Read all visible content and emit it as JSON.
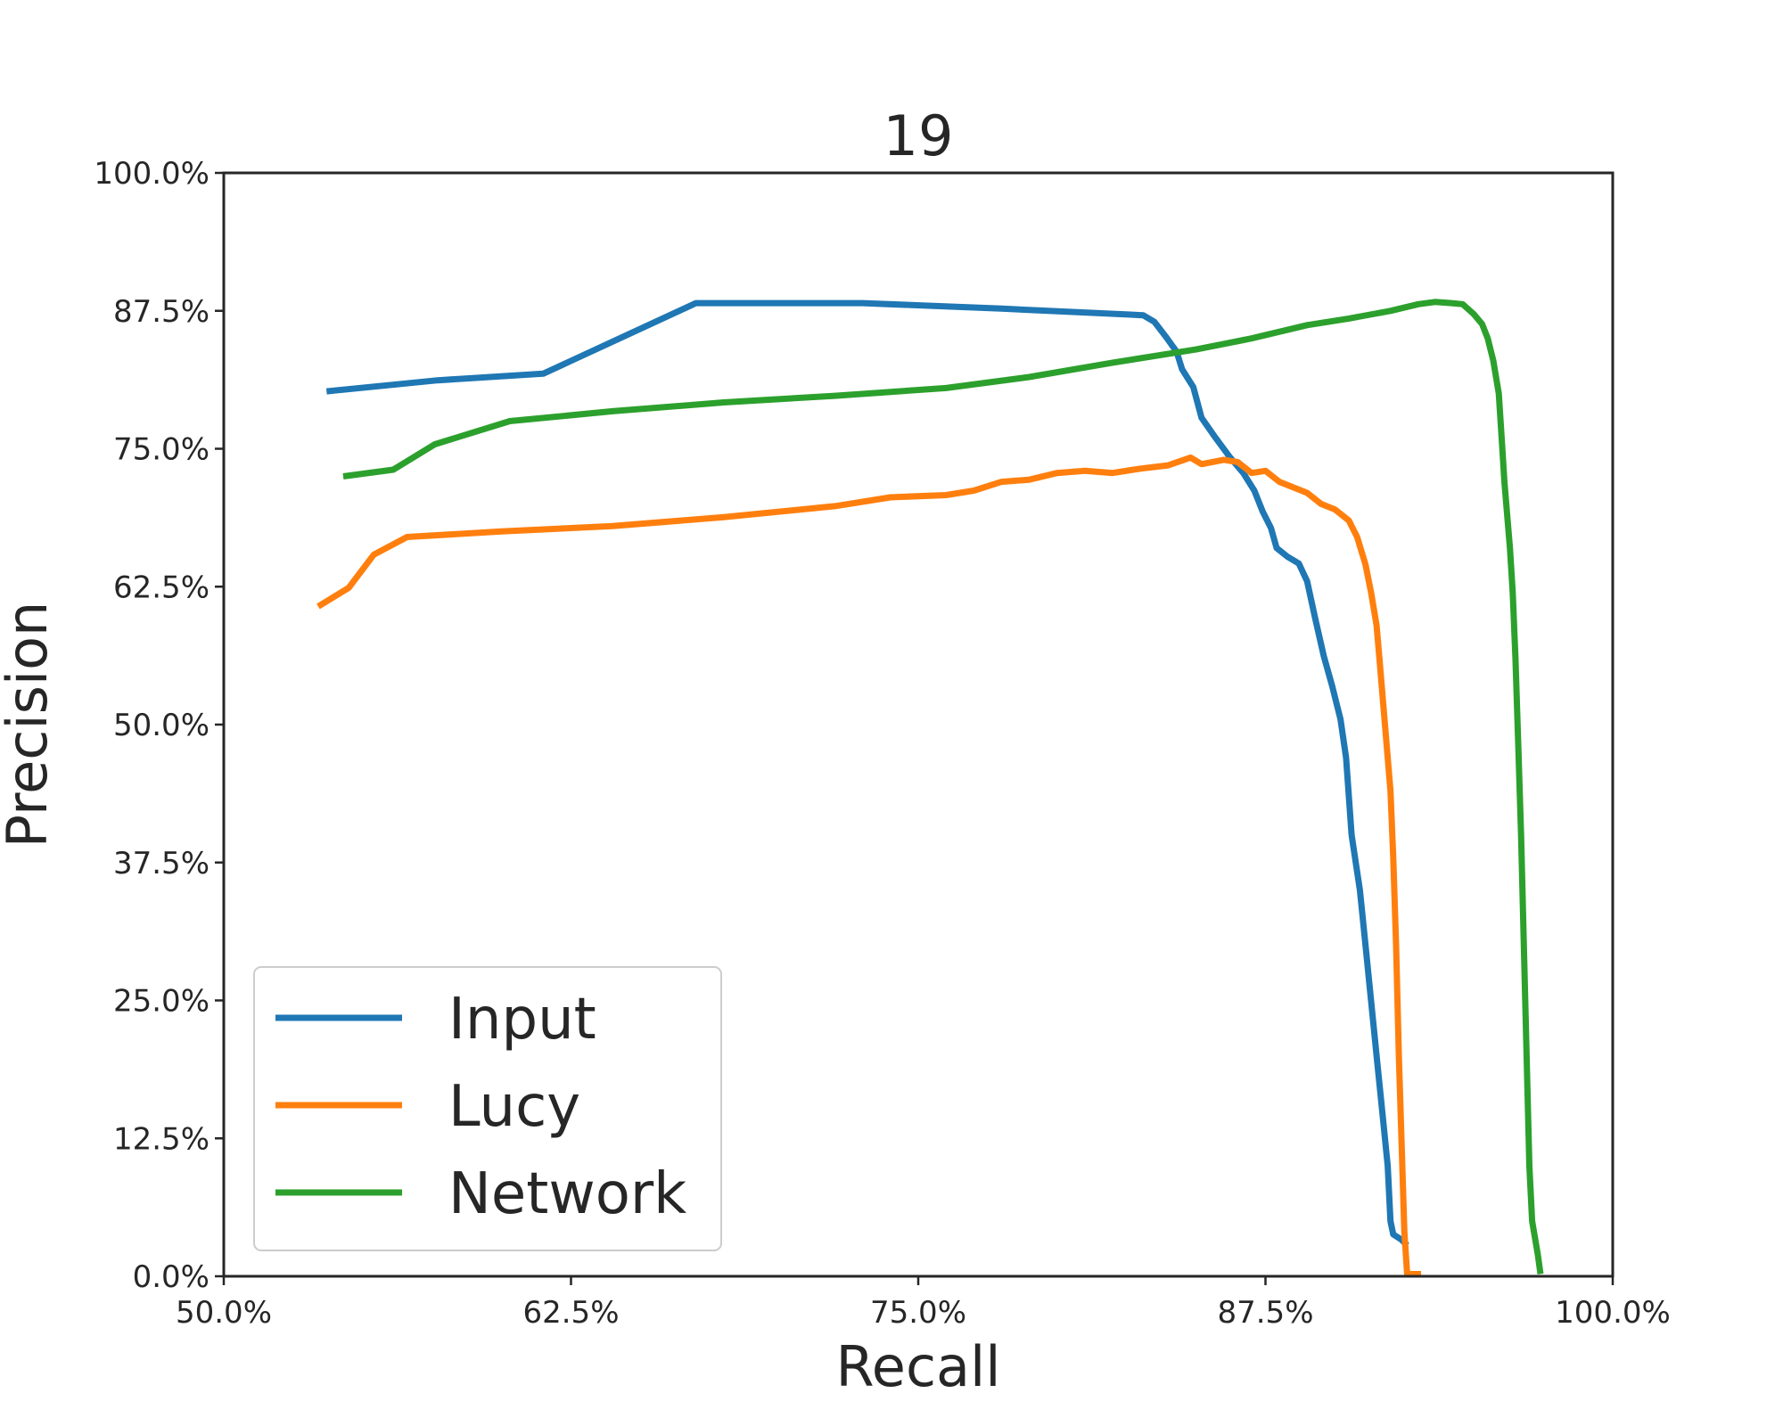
{
  "chart_data": {
    "type": "line",
    "title": "19",
    "xlabel": "Recall",
    "ylabel": "Precision",
    "xlim": [
      0.5,
      1.0
    ],
    "ylim": [
      0.0,
      1.0
    ],
    "x_ticks": [
      0.5,
      0.625,
      0.75,
      0.875,
      1.0
    ],
    "y_ticks": [
      0.0,
      0.125,
      0.25,
      0.375,
      0.5,
      0.625,
      0.75,
      0.875,
      1.0
    ],
    "x_tick_labels": [
      "50.0%",
      "62.5%",
      "75.0%",
      "87.5%",
      "100.0%"
    ],
    "y_tick_labels": [
      "0.0%",
      "12.5%",
      "25.0%",
      "37.5%",
      "50.0%",
      "62.5%",
      "75.0%",
      "87.5%",
      "100.0%"
    ],
    "grid": false,
    "legend_position": "lower-left",
    "series": [
      {
        "name": "Input",
        "color": "#1f77b4",
        "points": [
          [
            0.537,
            0.802
          ],
          [
            0.577,
            0.812
          ],
          [
            0.615,
            0.818
          ],
          [
            0.67,
            0.882
          ],
          [
            0.73,
            0.882
          ],
          [
            0.78,
            0.877
          ],
          [
            0.831,
            0.871
          ],
          [
            0.835,
            0.865
          ],
          [
            0.839,
            0.852
          ],
          [
            0.843,
            0.838
          ],
          [
            0.845,
            0.822
          ],
          [
            0.849,
            0.806
          ],
          [
            0.852,
            0.778
          ],
          [
            0.857,
            0.76
          ],
          [
            0.862,
            0.743
          ],
          [
            0.867,
            0.728
          ],
          [
            0.871,
            0.712
          ],
          [
            0.874,
            0.693
          ],
          [
            0.877,
            0.678
          ],
          [
            0.879,
            0.66
          ],
          [
            0.883,
            0.652
          ],
          [
            0.887,
            0.646
          ],
          [
            0.89,
            0.63
          ],
          [
            0.893,
            0.595
          ],
          [
            0.896,
            0.562
          ],
          [
            0.899,
            0.535
          ],
          [
            0.902,
            0.505
          ],
          [
            0.904,
            0.47
          ],
          [
            0.906,
            0.4
          ],
          [
            0.909,
            0.35
          ],
          [
            0.911,
            0.3
          ],
          [
            0.913,
            0.25
          ],
          [
            0.915,
            0.2
          ],
          [
            0.917,
            0.15
          ],
          [
            0.919,
            0.1
          ],
          [
            0.92,
            0.05
          ],
          [
            0.921,
            0.038
          ],
          [
            0.924,
            0.033
          ],
          [
            0.926,
            0.028
          ]
        ]
      },
      {
        "name": "Lucy",
        "color": "#ff7f0e",
        "points": [
          [
            0.534,
            0.607
          ],
          [
            0.545,
            0.624
          ],
          [
            0.554,
            0.654
          ],
          [
            0.566,
            0.67
          ],
          [
            0.6,
            0.675
          ],
          [
            0.64,
            0.68
          ],
          [
            0.68,
            0.688
          ],
          [
            0.72,
            0.698
          ],
          [
            0.74,
            0.706
          ],
          [
            0.76,
            0.708
          ],
          [
            0.77,
            0.712
          ],
          [
            0.78,
            0.72
          ],
          [
            0.79,
            0.722
          ],
          [
            0.8,
            0.728
          ],
          [
            0.81,
            0.73
          ],
          [
            0.82,
            0.728
          ],
          [
            0.83,
            0.732
          ],
          [
            0.84,
            0.735
          ],
          [
            0.848,
            0.742
          ],
          [
            0.852,
            0.736
          ],
          [
            0.86,
            0.74
          ],
          [
            0.865,
            0.738
          ],
          [
            0.87,
            0.728
          ],
          [
            0.875,
            0.73
          ],
          [
            0.88,
            0.72
          ],
          [
            0.89,
            0.71
          ],
          [
            0.895,
            0.7
          ],
          [
            0.9,
            0.695
          ],
          [
            0.905,
            0.685
          ],
          [
            0.908,
            0.67
          ],
          [
            0.911,
            0.645
          ],
          [
            0.913,
            0.62
          ],
          [
            0.915,
            0.59
          ],
          [
            0.916,
            0.56
          ],
          [
            0.918,
            0.5
          ],
          [
            0.92,
            0.44
          ],
          [
            0.921,
            0.38
          ],
          [
            0.922,
            0.3
          ],
          [
            0.923,
            0.2
          ],
          [
            0.924,
            0.12
          ],
          [
            0.925,
            0.04
          ],
          [
            0.926,
            0.002
          ],
          [
            0.931,
            0.002
          ]
        ]
      },
      {
        "name": "Network",
        "color": "#2ca02c",
        "points": [
          [
            0.543,
            0.725
          ],
          [
            0.561,
            0.731
          ],
          [
            0.576,
            0.754
          ],
          [
            0.603,
            0.775
          ],
          [
            0.64,
            0.784
          ],
          [
            0.68,
            0.792
          ],
          [
            0.72,
            0.798
          ],
          [
            0.76,
            0.805
          ],
          [
            0.79,
            0.815
          ],
          [
            0.82,
            0.828
          ],
          [
            0.85,
            0.84
          ],
          [
            0.87,
            0.85
          ],
          [
            0.89,
            0.862
          ],
          [
            0.905,
            0.868
          ],
          [
            0.92,
            0.875
          ],
          [
            0.93,
            0.881
          ],
          [
            0.936,
            0.883
          ],
          [
            0.942,
            0.882
          ],
          [
            0.946,
            0.881
          ],
          [
            0.95,
            0.872
          ],
          [
            0.953,
            0.863
          ],
          [
            0.955,
            0.85
          ],
          [
            0.957,
            0.83
          ],
          [
            0.959,
            0.8
          ],
          [
            0.96,
            0.76
          ],
          [
            0.961,
            0.72
          ],
          [
            0.962,
            0.69
          ],
          [
            0.963,
            0.66
          ],
          [
            0.964,
            0.62
          ],
          [
            0.965,
            0.56
          ],
          [
            0.966,
            0.48
          ],
          [
            0.967,
            0.4
          ],
          [
            0.968,
            0.3
          ],
          [
            0.969,
            0.2
          ],
          [
            0.97,
            0.1
          ],
          [
            0.971,
            0.05
          ],
          [
            0.973,
            0.02
          ],
          [
            0.974,
            0.002
          ]
        ]
      }
    ]
  }
}
